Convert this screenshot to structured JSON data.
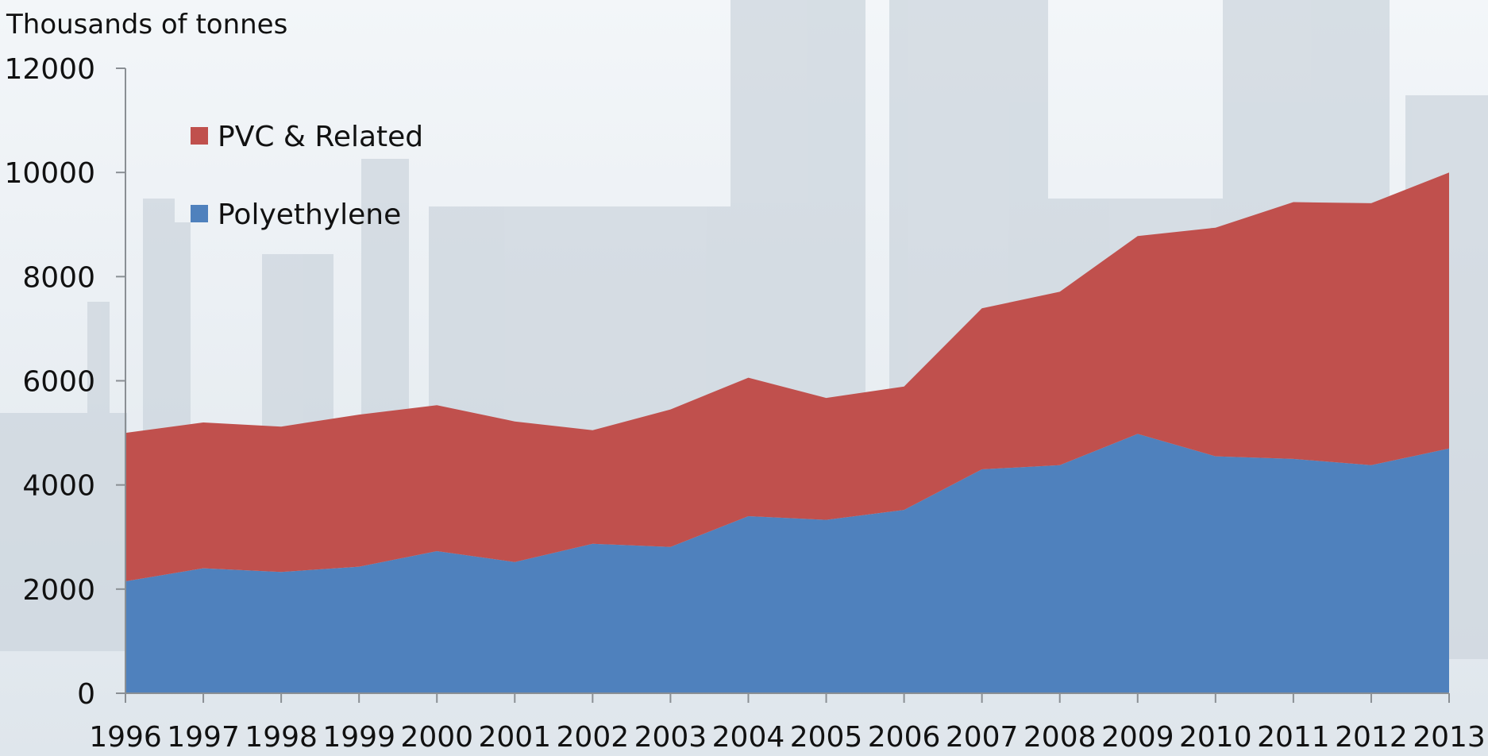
{
  "chart_data": {
    "type": "area",
    "stacked": true,
    "ylabel": "Thousands of tonnes",
    "xlabel": "",
    "ylim": [
      0,
      12000
    ],
    "yticks": [
      "0",
      "2000",
      "4000",
      "6000",
      "8000",
      "10000",
      "12000"
    ],
    "categories": [
      "1996",
      "1997",
      "1998",
      "1999",
      "2000",
      "2001",
      "2002",
      "2003",
      "2004",
      "2005",
      "2006",
      "2007",
      "2008",
      "2009",
      "2010",
      "2011",
      "2012",
      "2013"
    ],
    "series": [
      {
        "name": "Polyethylene",
        "color": "#4f81bd",
        "values": [
          2150,
          2400,
          2330,
          2430,
          2730,
          2520,
          2870,
          2810,
          3400,
          3330,
          3520,
          4300,
          4380,
          4980,
          4550,
          4500,
          4380,
          4700
        ]
      },
      {
        "name": "PVC & Related",
        "color": "#c0504d",
        "values": [
          2850,
          2800,
          2790,
          2920,
          2800,
          2700,
          2180,
          2640,
          2660,
          2340,
          2370,
          3090,
          3330,
          3800,
          4390,
          4930,
          5030,
          5300
        ]
      }
    ],
    "legend_position": "top-left",
    "grid": false
  }
}
